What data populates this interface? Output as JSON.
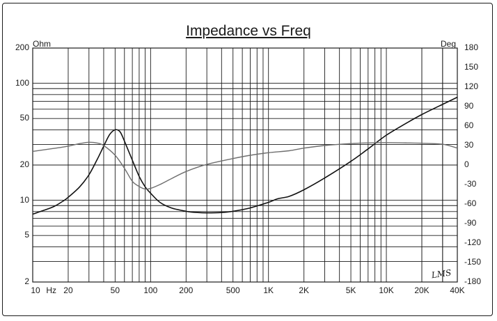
{
  "chart_data": {
    "type": "line",
    "title": "Impedance vs Freq",
    "x_scale": "log",
    "xlim": [
      10,
      40000
    ],
    "y_left_scale": "log",
    "y_left_unit": "Ohm",
    "y_left_lim": [
      2,
      200
    ],
    "y_right_unit": "Deg",
    "y_right_lim": [
      -180,
      180
    ],
    "x_ticks": [
      "10",
      "Hz",
      "20",
      "50",
      "100",
      "200",
      "500",
      "1K",
      "2K",
      "5K",
      "10K",
      "20K",
      "40K"
    ],
    "y_left_ticks": [
      "200",
      "100",
      "50",
      "20",
      "10",
      "5",
      "2"
    ],
    "y_right_ticks": [
      "180",
      "150",
      "120",
      "90",
      "60",
      "30",
      "0",
      "-30",
      "-60",
      "-90",
      "-120",
      "-150",
      "-180"
    ],
    "watermark": "LMS",
    "grid": true,
    "series": [
      {
        "color": "#111111",
        "axis": "left",
        "points": [
          [
            10,
            7.6
          ],
          [
            12,
            8.1
          ],
          [
            15,
            8.8
          ],
          [
            18,
            9.8
          ],
          [
            20,
            10.6
          ],
          [
            25,
            13
          ],
          [
            30,
            16.5
          ],
          [
            35,
            22
          ],
          [
            40,
            29
          ],
          [
            45,
            36.5
          ],
          [
            50,
            40
          ],
          [
            55,
            38.5
          ],
          [
            60,
            32
          ],
          [
            70,
            22
          ],
          [
            80,
            16
          ],
          [
            90,
            13
          ],
          [
            100,
            11.5
          ],
          [
            120,
            9.6
          ],
          [
            150,
            8.6
          ],
          [
            200,
            8.05
          ],
          [
            250,
            7.85
          ],
          [
            300,
            7.8
          ],
          [
            400,
            7.85
          ],
          [
            500,
            8.05
          ],
          [
            700,
            8.6
          ],
          [
            1000,
            9.6
          ],
          [
            1200,
            10.3
          ],
          [
            1500,
            10.8
          ],
          [
            2000,
            12.3
          ],
          [
            3000,
            15.5
          ],
          [
            5000,
            21.5
          ],
          [
            7000,
            27.5
          ],
          [
            10000,
            36
          ],
          [
            15000,
            46
          ],
          [
            20000,
            54
          ],
          [
            30000,
            66
          ],
          [
            40000,
            76
          ]
        ]
      },
      {
        "color": "#6e6e6e",
        "axis": "right",
        "points": [
          [
            10,
            21
          ],
          [
            15,
            25.5
          ],
          [
            20,
            29
          ],
          [
            25,
            33
          ],
          [
            30,
            35
          ],
          [
            35,
            34
          ],
          [
            40,
            30
          ],
          [
            50,
            15
          ],
          [
            60,
            -5
          ],
          [
            70,
            -25
          ],
          [
            80,
            -33
          ],
          [
            90,
            -37
          ],
          [
            100,
            -36
          ],
          [
            120,
            -30
          ],
          [
            150,
            -21
          ],
          [
            200,
            -10
          ],
          [
            300,
            1
          ],
          [
            500,
            10
          ],
          [
            700,
            15
          ],
          [
            1000,
            19
          ],
          [
            1500,
            22
          ],
          [
            2000,
            26
          ],
          [
            3000,
            30
          ],
          [
            5000,
            33
          ],
          [
            7000,
            34
          ],
          [
            10000,
            34.5
          ],
          [
            15000,
            34
          ],
          [
            20000,
            33.5
          ],
          [
            30000,
            32
          ],
          [
            40000,
            26
          ]
        ]
      }
    ]
  }
}
